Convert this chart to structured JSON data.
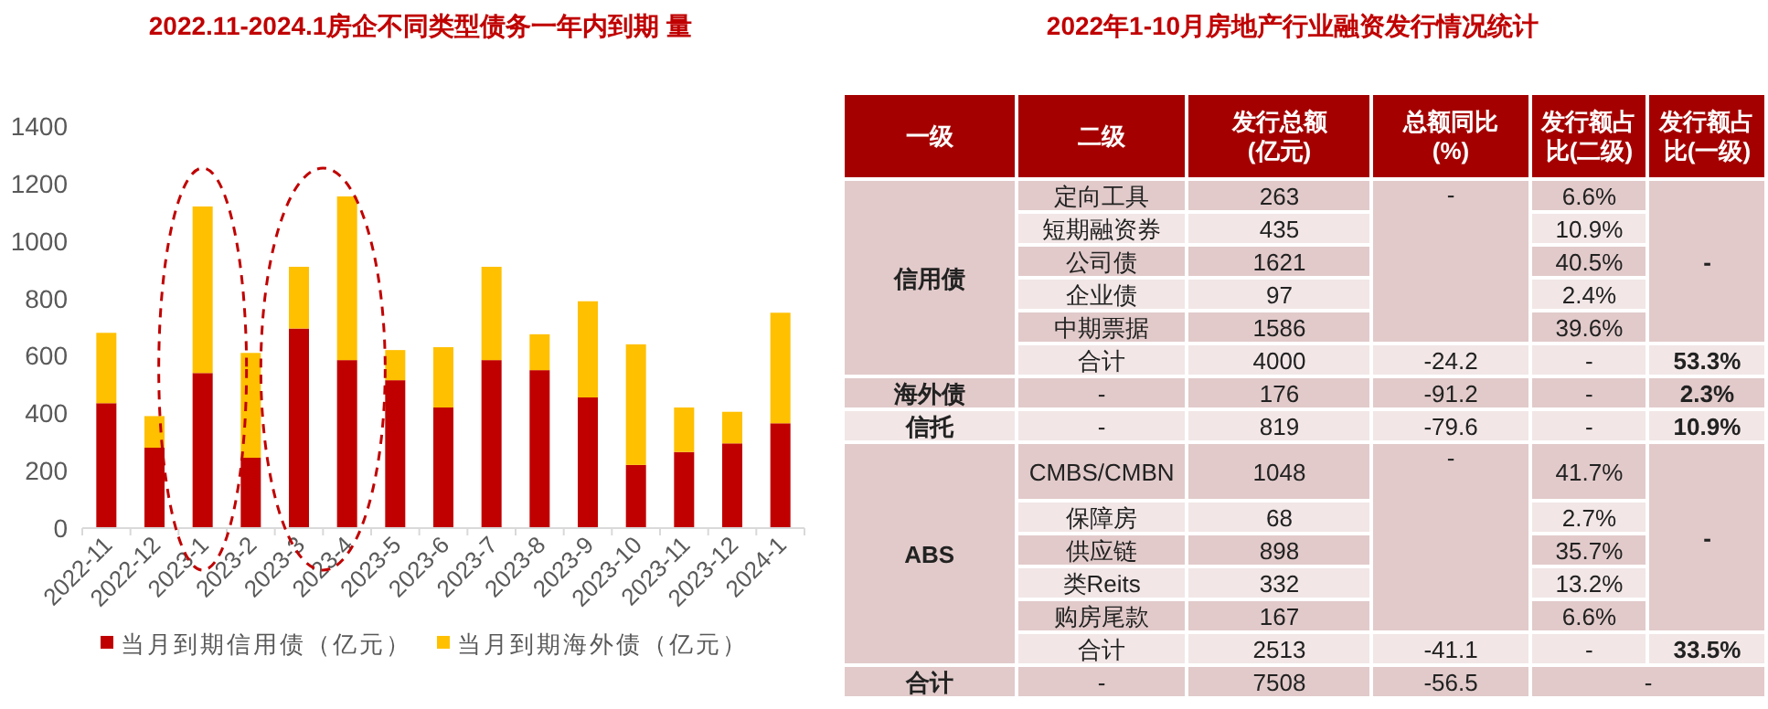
{
  "chart_data": [
    {
      "type": "bar",
      "title": "2022.11-2024.1房企不同类型债务一年内到期 量",
      "categories": [
        "2022-11",
        "2022-12",
        "2023-1",
        "2023-2",
        "2023-3",
        "2023-4",
        "2023-5",
        "2023-6",
        "2023-7",
        "2023-8",
        "2023-9",
        "2023-10",
        "2023-11",
        "2023-12",
        "2024-1"
      ],
      "stacked": true,
      "series": [
        {
          "name": "当月到期信用债（亿元）",
          "color": "#c00000",
          "values": [
            435,
            280,
            540,
            245,
            695,
            585,
            515,
            420,
            585,
            550,
            455,
            220,
            265,
            295,
            365
          ]
        },
        {
          "name": "当月到期海外债（亿元）",
          "color": "#ffc000",
          "values": [
            245,
            110,
            580,
            365,
            215,
            570,
            105,
            210,
            325,
            125,
            335,
            420,
            155,
            110,
            385
          ]
        }
      ],
      "ylim": [
        0,
        1400
      ],
      "yticks": [
        0,
        200,
        400,
        600,
        800,
        1000,
        1200,
        1400
      ],
      "legend": "bottom",
      "grid": false
    },
    {
      "type": "other",
      "title": "2022年1-10月房地产行业融资发行情况统计",
      "categories": [
        "一级",
        "二级",
        "发行总额\n(亿元)",
        "总额同比\n(%)",
        "发行额占比(二级)",
        "发行额占比(一级)"
      ],
      "cell_labels": [
        [
          "信用债",
          "定向工具",
          "263",
          "-",
          "6.6%",
          "-"
        ],
        [
          null,
          "短期融资券",
          "435",
          null,
          "10.9%",
          null
        ],
        [
          null,
          "公司债",
          "1621",
          null,
          "40.5%",
          null
        ],
        [
          null,
          "企业债",
          "97",
          null,
          "2.4%",
          null
        ],
        [
          null,
          "中期票据",
          "1586",
          null,
          "39.6%",
          null
        ],
        [
          null,
          "合计",
          "4000",
          "-24.2",
          "-",
          "53.3%"
        ],
        [
          "海外债",
          "-",
          "176",
          "-91.2",
          "-",
          "2.3%"
        ],
        [
          "信托",
          "-",
          "819",
          "-79.6",
          "-",
          "10.9%"
        ],
        [
          "ABS",
          "CMBS/CMBN",
          "1048",
          "-",
          "41.7%",
          "-"
        ],
        [
          null,
          "保障房",
          "68",
          null,
          "2.7%",
          null
        ],
        [
          null,
          "供应链",
          "898",
          null,
          "35.7%",
          null
        ],
        [
          null,
          "类Reits",
          "332",
          null,
          "13.2%",
          null
        ],
        [
          null,
          "购房尾款",
          "167",
          null,
          "6.6%",
          null
        ],
        [
          null,
          "合计",
          "2513",
          "-41.1",
          "-",
          "33.5%"
        ],
        [
          "合计",
          "-",
          "7508",
          "-56.5",
          "-",
          null
        ]
      ]
    }
  ]
}
